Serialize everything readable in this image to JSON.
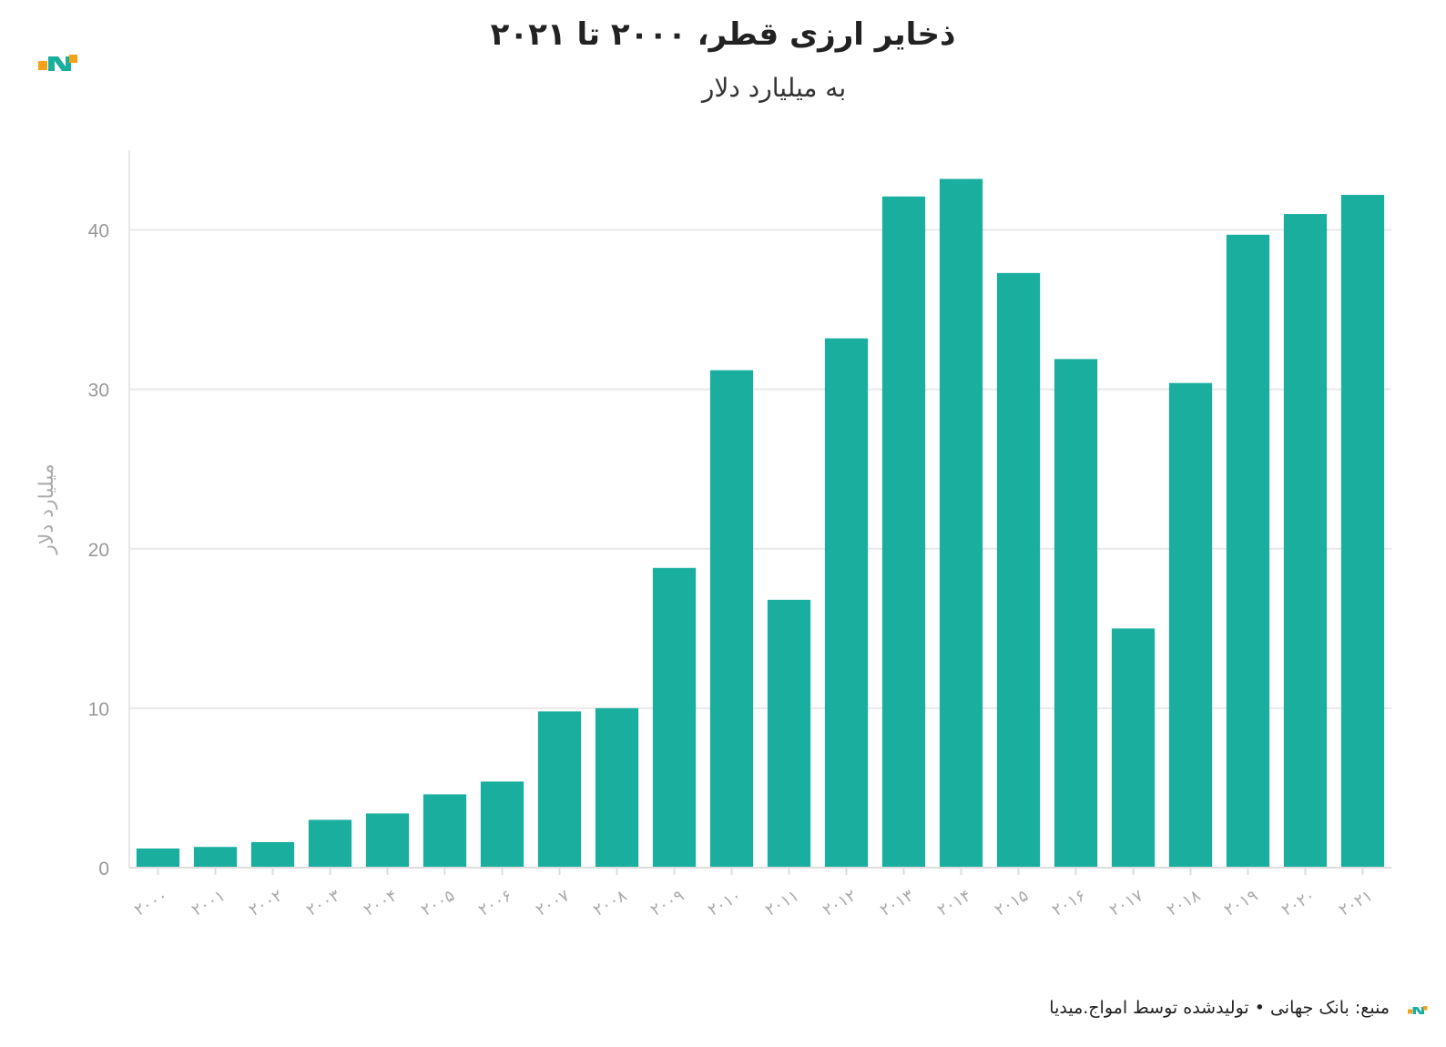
{
  "header": {
    "title": "ذخایر ارزی قطر، ۲۰۰۰ تا ۲۰۲۱",
    "subtitle": "به میلیارد دلار"
  },
  "footer": {
    "text": "منبع: بانک جهانی • تولیدشده توسط امواج.میدیا"
  },
  "colors": {
    "bar": "#1aae9f",
    "grid": "#e8e8e8",
    "logo_orange": "#f5a21b",
    "logo_teal": "#1aae9f"
  },
  "icons": {
    "brand_logo": "amwaj-logo-icon"
  },
  "chart_data": {
    "type": "bar",
    "title": "ذخایر ارزی قطر، ۲۰۰۰ تا ۲۰۲۱",
    "subtitle": "به میلیارد دلار",
    "xlabel": "",
    "ylabel": "میلیارد دلار",
    "categories": [
      "۲۰۰۰",
      "۲۰۰۱",
      "۲۰۰۲",
      "۲۰۰۳",
      "۲۰۰۴",
      "۲۰۰۵",
      "۲۰۰۶",
      "۲۰۰۷",
      "۲۰۰۸",
      "۲۰۰۹",
      "۲۰۱۰",
      "۲۰۱۱",
      "۲۰۱۲",
      "۲۰۱۳",
      "۲۰۱۴",
      "۲۰۱۵",
      "۲۰۱۶",
      "۲۰۱۷",
      "۲۰۱۸",
      "۲۰۱۹",
      "۲۰۲۰",
      "۲۰۲۱"
    ],
    "values": [
      1.2,
      1.3,
      1.6,
      3.0,
      3.4,
      4.6,
      5.4,
      9.8,
      10.0,
      18.8,
      31.2,
      16.8,
      33.2,
      42.1,
      43.2,
      37.3,
      31.9,
      15.0,
      30.4,
      39.7,
      41.0,
      42.2
    ],
    "ylim": [
      0,
      45
    ],
    "yticks": [
      0,
      10,
      20,
      30,
      40
    ],
    "grid": true,
    "legend": "none"
  }
}
